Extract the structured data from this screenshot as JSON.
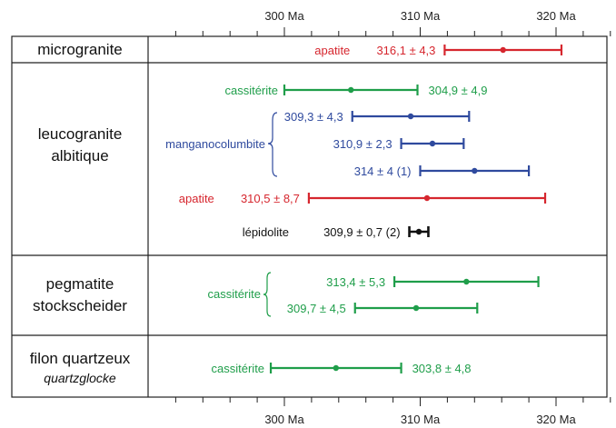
{
  "chart_data": {
    "type": "errorbar",
    "title": "",
    "xlabel": "",
    "ylabel": "",
    "x_unit": "Ma",
    "xlim": [
      292,
      324
    ],
    "x_ticks": [
      300,
      310,
      320
    ],
    "x_tick_labels": [
      "300 Ma",
      "310 Ma",
      "320 Ma"
    ],
    "minor_tick_step": 2,
    "colors": {
      "apatite": "#d6262e",
      "cassiterite": "#1f9e4a",
      "manganocolumbite": "#2f4a9e",
      "lepidolite": "#111111"
    },
    "rows": [
      {
        "label": "microgranite",
        "label_italic": "",
        "measurements": [
          {
            "mineral": "apatite",
            "color_key": "apatite",
            "age": 316.1,
            "err": 4.3,
            "label": "316,1 ± 4,3",
            "mineral_shown": true
          }
        ]
      },
      {
        "label": "leucogranite albitique",
        "label_lines": [
          "leucogranite",
          "albitique"
        ],
        "label_italic": "",
        "group_label": "manganocolumbite",
        "measurements": [
          {
            "mineral": "cassitérite",
            "color_key": "cassiterite",
            "age": 304.9,
            "err": 4.9,
            "label": "304,9 ± 4,9",
            "mineral_shown": true
          },
          {
            "mineral": "manganocolumbite",
            "color_key": "manganocolumbite",
            "age": 309.3,
            "err": 4.3,
            "label": "309,3 ± 4,3",
            "mineral_shown": false
          },
          {
            "mineral": "manganocolumbite",
            "color_key": "manganocolumbite",
            "age": 310.9,
            "err": 2.3,
            "label": "310,9 ± 2,3",
            "mineral_shown": false
          },
          {
            "mineral": "manganocolumbite",
            "color_key": "manganocolumbite",
            "age": 314,
            "err": 4,
            "label": "314 ± 4 (1)",
            "mineral_shown": false
          },
          {
            "mineral": "apatite",
            "color_key": "apatite",
            "age": 310.5,
            "err": 8.7,
            "label": "310,5 ± 8,7",
            "mineral_shown": true
          },
          {
            "mineral": "lépidolite",
            "color_key": "lepidolite",
            "age": 309.9,
            "err": 0.7,
            "label": "309,9 ± 0,7 (2)",
            "mineral_shown": true
          }
        ]
      },
      {
        "label": "pegmatite stockscheider",
        "label_lines": [
          "pegmatite",
          "stockscheider"
        ],
        "label_italic": "",
        "group_label": "cassitérite",
        "measurements": [
          {
            "mineral": "cassitérite",
            "color_key": "cassiterite",
            "age": 313.4,
            "err": 5.3,
            "label": "313,4 ± 5,3",
            "mineral_shown": false
          },
          {
            "mineral": "cassitérite",
            "color_key": "cassiterite",
            "age": 309.7,
            "err": 4.5,
            "label": "309,7 ± 4,5",
            "mineral_shown": false
          }
        ]
      },
      {
        "label": "filon quartzeux",
        "label_lines": [
          "filon quartzeux"
        ],
        "label_italic": "quartzglocke",
        "measurements": [
          {
            "mineral": "cassitérite",
            "color_key": "cassiterite",
            "age": 303.8,
            "err": 4.8,
            "label": "303,8 ± 4,8",
            "mineral_shown": true
          }
        ]
      }
    ]
  }
}
